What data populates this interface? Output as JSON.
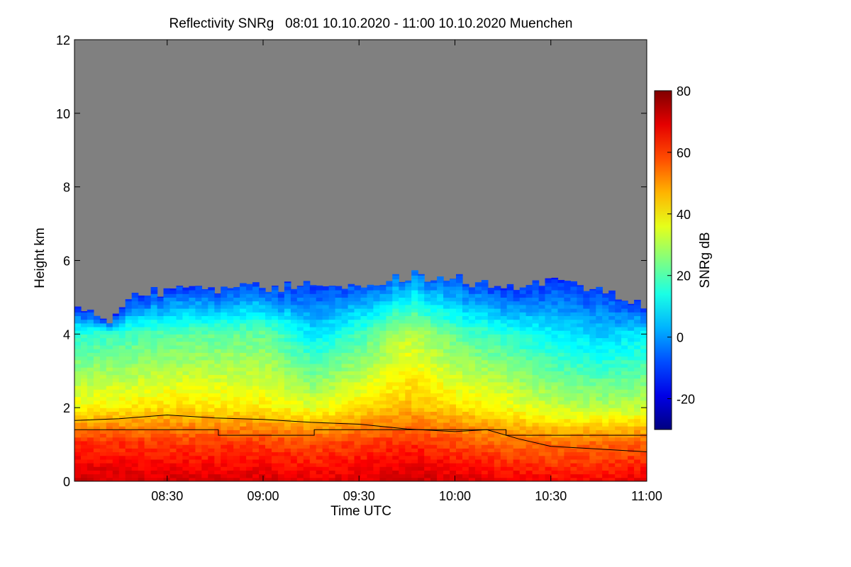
{
  "chart_data": {
    "type": "heatmap",
    "title": "Reflectivity SNRg   08:01 10.10.2020 - 11:00 10.10.2020 Muenchen",
    "xlabel": "Time UTC",
    "ylabel": "Height km",
    "xlim": [
      "08:01",
      "11:00"
    ],
    "ylim": [
      0,
      12
    ],
    "x_ticks": [
      "08:30",
      "09:00",
      "09:30",
      "10:00",
      "10:30",
      "11:00"
    ],
    "y_ticks": [
      "0",
      "2",
      "4",
      "6",
      "8",
      "10",
      "12"
    ],
    "colorbar": {
      "label": "SNRg dB",
      "range": [
        -30,
        80
      ],
      "ticks": [
        "-20",
        "0",
        "20",
        "40",
        "60",
        "80"
      ],
      "colormap": "jet"
    },
    "background_color": "#808080",
    "signal_top_km": [
      {
        "time": "08:01",
        "height": 4.75
      },
      {
        "time": "08:10",
        "height": 4.3
      },
      {
        "time": "08:20",
        "height": 5.1
      },
      {
        "time": "08:35",
        "height": 5.2
      },
      {
        "time": "08:50",
        "height": 5.25
      },
      {
        "time": "09:10",
        "height": 5.3
      },
      {
        "time": "09:30",
        "height": 5.35
      },
      {
        "time": "09:45",
        "height": 5.6
      },
      {
        "time": "10:00",
        "height": 5.5
      },
      {
        "time": "10:15",
        "height": 5.2
      },
      {
        "time": "10:30",
        "height": 5.45
      },
      {
        "time": "10:45",
        "height": 5.2
      },
      {
        "time": "11:00",
        "height": 4.75
      }
    ],
    "layer_profile": [
      {
        "time": "08:01",
        "snr_top": -15,
        "snr_4km": 15,
        "snr_2km": 38,
        "snr_1km": 62,
        "snr_0km": 72
      },
      {
        "time": "08:30",
        "snr_top": -12,
        "snr_4km": 20,
        "snr_2km": 42,
        "snr_1km": 60,
        "snr_0km": 70
      },
      {
        "time": "09:00",
        "snr_top": -10,
        "snr_4km": 22,
        "snr_2km": 40,
        "snr_1km": 60,
        "snr_0km": 70
      },
      {
        "time": "09:15",
        "snr_top": -12,
        "snr_4km": 8,
        "snr_2km": 35,
        "snr_1km": 58,
        "snr_0km": 68
      },
      {
        "time": "09:30",
        "snr_top": -8,
        "snr_4km": 18,
        "snr_2km": 42,
        "snr_1km": 60,
        "snr_0km": 70
      },
      {
        "time": "09:45",
        "snr_top": -5,
        "snr_4km": 32,
        "snr_2km": 46,
        "snr_1km": 62,
        "snr_0km": 72
      },
      {
        "time": "10:00",
        "snr_top": -8,
        "snr_4km": 20,
        "snr_2km": 42,
        "snr_1km": 58,
        "snr_0km": 70
      },
      {
        "time": "10:15",
        "snr_top": -12,
        "snr_4km": 15,
        "snr_2km": 38,
        "snr_1km": 55,
        "snr_0km": 68
      },
      {
        "time": "10:30",
        "snr_top": -12,
        "snr_4km": 10,
        "snr_2km": 32,
        "snr_1km": 54,
        "snr_0km": 66
      },
      {
        "time": "10:45",
        "snr_top": -10,
        "snr_4km": 5,
        "snr_2km": 30,
        "snr_1km": 55,
        "snr_0km": 66
      },
      {
        "time": "11:00",
        "snr_top": -12,
        "snr_4km": 10,
        "snr_2km": 32,
        "snr_1km": 56,
        "snr_0km": 68
      }
    ],
    "boundary_layer_line_km": [
      {
        "time": "08:01",
        "height": 1.65
      },
      {
        "time": "08:15",
        "height": 1.7
      },
      {
        "time": "08:30",
        "height": 1.8
      },
      {
        "time": "08:45",
        "height": 1.72
      },
      {
        "time": "09:00",
        "height": 1.68
      },
      {
        "time": "09:15",
        "height": 1.6
      },
      {
        "time": "09:30",
        "height": 1.55
      },
      {
        "time": "09:45",
        "height": 1.42
      },
      {
        "time": "10:00",
        "height": 1.35
      },
      {
        "time": "10:10",
        "height": 1.4
      },
      {
        "time": "10:20",
        "height": 1.15
      },
      {
        "time": "10:30",
        "height": 0.95
      },
      {
        "time": "10:40",
        "height": 0.9
      },
      {
        "time": "10:50",
        "height": 0.85
      },
      {
        "time": "11:00",
        "height": 0.8
      }
    ],
    "step_line_km": [
      {
        "time": "08:01",
        "height": 1.4
      },
      {
        "time": "08:46",
        "height": 1.4
      },
      {
        "time": "08:46",
        "height": 1.25
      },
      {
        "time": "09:16",
        "height": 1.25
      },
      {
        "time": "09:16",
        "height": 1.4
      },
      {
        "time": "10:16",
        "height": 1.4
      },
      {
        "time": "10:16",
        "height": 1.25
      },
      {
        "time": "11:00",
        "height": 1.25
      }
    ]
  }
}
